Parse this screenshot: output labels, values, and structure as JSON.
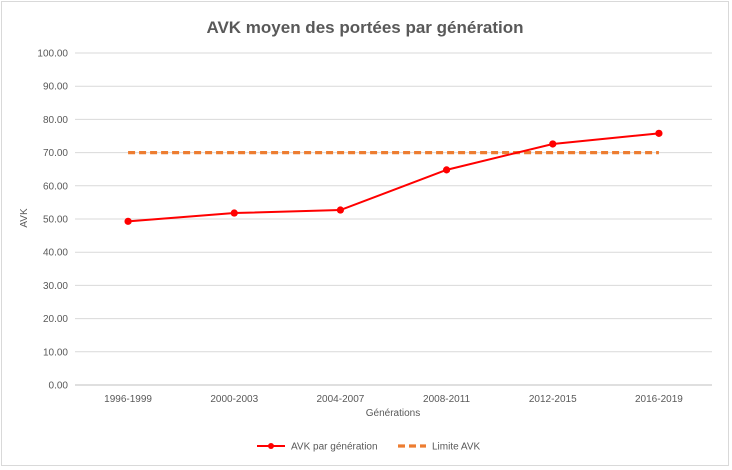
{
  "chart_data": {
    "type": "line",
    "title": "AVK moyen des portées par génération",
    "xlabel": "Générations",
    "ylabel": "AVK",
    "categories": [
      "1996-1999",
      "2000-2003",
      "2004-2007",
      "2008-2011",
      "2012-2015",
      "2016-2019"
    ],
    "ylim": [
      0,
      100
    ],
    "yticks": [
      "0.00",
      "10.00",
      "20.00",
      "30.00",
      "40.00",
      "50.00",
      "60.00",
      "70.00",
      "80.00",
      "90.00",
      "100.00"
    ],
    "grid": true,
    "legend": "bottom",
    "series": [
      {
        "name": "AVK par génération",
        "values": [
          49.3,
          51.8,
          52.7,
          64.8,
          72.6,
          75.8
        ],
        "color": "#ff0000",
        "style": "solid-with-markers"
      },
      {
        "name": "Limite AVK",
        "values": [
          70,
          70,
          70,
          70,
          70,
          70
        ],
        "color": "#ed7d31",
        "style": "dashed"
      }
    ]
  }
}
